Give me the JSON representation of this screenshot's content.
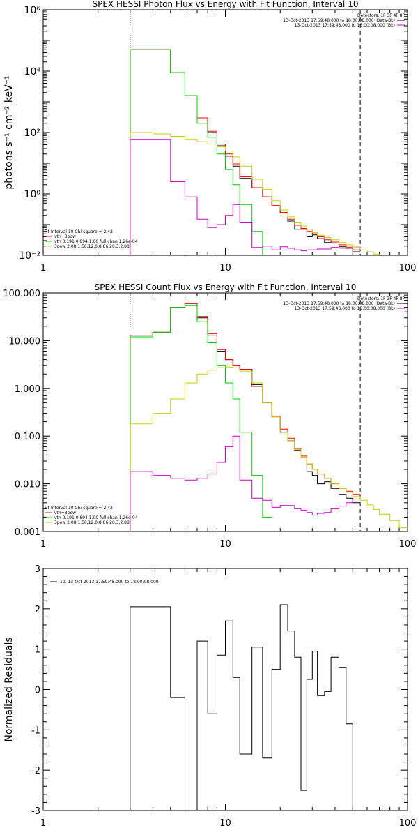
{
  "chart_data": [
    {
      "type": "line",
      "title": "SPEX HESSI Photon Flux vs Energy with Fit Function, Interval 10",
      "xlabel": "",
      "ylabel": "photons s⁻¹ cm⁻² keV⁻¹",
      "xscale": "log",
      "yscale": "log",
      "xlim": [
        1,
        100
      ],
      "ylim": [
        0.01,
        1000000
      ],
      "x_ticks": [
        {
          "value": 1,
          "label": "1"
        },
        {
          "value": 10,
          "label": "10"
        },
        {
          "value": 100,
          "label": "100"
        }
      ],
      "y_ticks": [
        {
          "value": 0.01,
          "label": "10⁻²"
        },
        {
          "value": 1,
          "label": "10⁰"
        },
        {
          "value": 100,
          "label": "10²"
        },
        {
          "value": 10000,
          "label": "10⁴"
        },
        {
          "value": 1000000,
          "label": "10⁶"
        }
      ],
      "fit_range": [
        3,
        55
      ],
      "legend_topright": {
        "header": "Detectors: 1F 3F 4F 8F",
        "entries": [
          {
            "label": "13-Oct-2013 17:59:48.000 to 18:00:08.000 (Data-Bk)",
            "color": "#000000"
          },
          {
            "label": "13-Oct-2013 17:59:48.000 to 18:00:08.000 (Bk)",
            "color": "#cc00cc"
          }
        ]
      },
      "legend_bottomleft": {
        "header": "Fit Interval 10   Chi-square = 2.42",
        "entries": [
          {
            "label": "vth+3pow",
            "color": "#ff0000"
          },
          {
            "label": "vth 0.191,0.894,1.00  full chan 1.26e-04",
            "color": "#00cc00"
          },
          {
            "label": "3pow 2.08,1.50,12.0,8.86,20.3,2.88",
            "color": "#cccc00"
          }
        ]
      },
      "series": [
        {
          "name": "Data-Bk",
          "color": "#000000",
          "edges": [
            3,
            4,
            5,
            6,
            7,
            8,
            9,
            10,
            11,
            12,
            14,
            16,
            18,
            20,
            22,
            24,
            26,
            28,
            30,
            32,
            35,
            38,
            42,
            46,
            50,
            55
          ],
          "values": [
            50000,
            50000,
            9000,
            1600,
            300,
            100,
            37,
            17,
            8,
            3.2,
            1.6,
            0.8,
            0.4,
            0.24,
            0.13,
            0.07,
            0.07,
            0.04,
            0.046,
            0.035,
            0.026,
            0.025,
            0.019,
            0.017,
            0.013
          ]
        },
        {
          "name": "vth+3pow",
          "color": "#ff0000",
          "edges": [
            3,
            4,
            5,
            6,
            7,
            8,
            9,
            10,
            11,
            12,
            14,
            16,
            18,
            20,
            22,
            24,
            26,
            28,
            30,
            32,
            35,
            38,
            42,
            46,
            50,
            55
          ],
          "values": [
            50000,
            50000,
            9000,
            1600,
            300,
            110,
            42,
            20,
            9.5,
            3.6,
            1.6,
            0.8,
            0.42,
            0.25,
            0.15,
            0.095,
            0.075,
            0.06,
            0.05,
            0.04,
            0.032,
            0.027,
            0.022,
            0.018,
            0.015
          ]
        },
        {
          "name": "vth",
          "color": "#00cc00",
          "edges": [
            3,
            4,
            5,
            6,
            7,
            8,
            9,
            10,
            11,
            12,
            14,
            16
          ],
          "values": [
            50000,
            50000,
            9000,
            1600,
            200,
            70,
            20,
            6.2,
            2,
            0.45,
            0.06,
            0.005
          ]
        },
        {
          "name": "3pow",
          "color": "#cccc00",
          "edges": [
            3,
            4,
            5,
            6,
            7,
            8,
            9,
            10,
            11,
            12,
            14,
            16,
            18,
            20,
            22,
            24,
            26,
            28,
            30,
            32,
            35,
            38,
            42,
            46,
            50,
            55,
            60,
            65,
            70,
            80
          ],
          "values": [
            100,
            90,
            75,
            60,
            50,
            42,
            34,
            25,
            16,
            8,
            3,
            1.4,
            0.6,
            0.3,
            0.18,
            0.12,
            0.09,
            0.07,
            0.055,
            0.045,
            0.038,
            0.032,
            0.026,
            0.022,
            0.018,
            0.015,
            0.013,
            0.011,
            0.01
          ]
        },
        {
          "name": "Bk",
          "color": "#cc00cc",
          "edges": [
            3,
            4,
            5,
            6,
            7,
            8,
            9,
            10,
            11,
            12,
            14,
            16,
            18,
            20,
            22,
            24,
            26,
            28,
            30,
            32,
            35,
            38,
            42,
            46,
            50,
            55
          ],
          "values": [
            60,
            60,
            2.5,
            0.8,
            0.15,
            0.08,
            0.1,
            0.2,
            0.45,
            0.12,
            0.018,
            0.02,
            0.015,
            0.019,
            0.017,
            0.015,
            0.014,
            0.015,
            0.015,
            0.016,
            0.016,
            0.018,
            0.017,
            0.02,
            0.02
          ]
        }
      ]
    },
    {
      "type": "line",
      "title": "SPEX HESSI Count Flux vs Energy with Fit Function, Interval 10",
      "xlabel": "",
      "ylabel": "",
      "xscale": "log",
      "yscale": "log",
      "xlim": [
        1,
        100
      ],
      "ylim": [
        0.001,
        100
      ],
      "x_ticks": [
        {
          "value": 1,
          "label": "1"
        },
        {
          "value": 10,
          "label": "10"
        },
        {
          "value": 100,
          "label": "100"
        }
      ],
      "y_ticks": [
        {
          "value": 0.001,
          "label": "0.001"
        },
        {
          "value": 0.01,
          "label": "0.010"
        },
        {
          "value": 0.1,
          "label": "0.100"
        },
        {
          "value": 1,
          "label": "1.000"
        },
        {
          "value": 10,
          "label": "10.000"
        },
        {
          "value": 100,
          "label": "100.000"
        }
      ],
      "fit_range": [
        3,
        55
      ],
      "legend_topright": {
        "header": "Detectors: 1F 3F 4F 8F",
        "entries": [
          {
            "label": "13-Oct-2013 17:59:48.000 to 18:00:08.000 (Data-Bk)",
            "color": "#000000"
          },
          {
            "label": "13-Oct-2013 17:59:48.000 to 18:00:08.000 (Bk)",
            "color": "#cc00cc"
          }
        ]
      },
      "legend_bottomleft": {
        "header": "Fit Interval 10   Chi-square = 2.42",
        "entries": [
          {
            "label": "vth+3pow",
            "color": "#ff0000"
          },
          {
            "label": "vth 0.191,0.894,1.00  full chan 1.26e-04",
            "color": "#00cc00"
          },
          {
            "label": "3pow 2.08,1.50,12.0,8.86,20.3,2.88",
            "color": "#cccc00"
          }
        ]
      },
      "series": [
        {
          "name": "Data-Bk",
          "color": "#000000",
          "edges": [
            3,
            4,
            5,
            6,
            7,
            8,
            9,
            10,
            11,
            12,
            14,
            16,
            18,
            20,
            22,
            24,
            26,
            28,
            30,
            32,
            35,
            38,
            42,
            46,
            50,
            55
          ],
          "values": [
            13,
            15,
            50,
            60,
            30,
            13,
            6,
            4,
            3,
            2.5,
            1.2,
            0.5,
            0.25,
            0.12,
            0.08,
            0.05,
            0.035,
            0.018,
            0.015,
            0.01,
            0.011,
            0.008,
            0.006,
            0.005,
            0.004
          ]
        },
        {
          "name": "vth+3pow",
          "color": "#ff0000",
          "edges": [
            3,
            4,
            5,
            6,
            7,
            8,
            9,
            10,
            11,
            12,
            14,
            16,
            18,
            20,
            22,
            24,
            26,
            28,
            30,
            32,
            35,
            38,
            42,
            46,
            50,
            55
          ],
          "values": [
            13,
            15,
            50,
            60,
            32,
            14,
            6.5,
            4,
            3,
            2.5,
            1.1,
            0.5,
            0.26,
            0.14,
            0.09,
            0.055,
            0.038,
            0.026,
            0.02,
            0.016,
            0.013,
            0.01,
            0.008,
            0.007,
            0.006
          ]
        },
        {
          "name": "vth",
          "color": "#00cc00",
          "edges": [
            3,
            4,
            5,
            6,
            7,
            8,
            9,
            10,
            11,
            12,
            14,
            16,
            18
          ],
          "values": [
            12,
            15,
            50,
            55,
            25,
            9,
            3,
            1.3,
            0.6,
            0.12,
            0.015,
            0.002
          ]
        },
        {
          "name": "3pow",
          "color": "#cccc00",
          "edges": [
            3,
            4,
            5,
            6,
            7,
            8,
            9,
            10,
            11,
            12,
            14,
            16,
            18,
            20,
            22,
            24,
            26,
            28,
            30,
            32,
            35,
            38,
            42,
            46,
            50,
            55,
            60,
            65,
            70,
            80,
            90,
            100
          ],
          "values": [
            0.18,
            0.3,
            0.6,
            1.3,
            2,
            2.4,
            2.7,
            2.8,
            2.7,
            2.3,
            1.3,
            0.5,
            0.25,
            0.12,
            0.08,
            0.052,
            0.036,
            0.026,
            0.02,
            0.016,
            0.013,
            0.01,
            0.008,
            0.0066,
            0.0054,
            0.0045,
            0.0036,
            0.0029,
            0.0023,
            0.0017,
            0.0012
          ]
        },
        {
          "name": "Bk",
          "color": "#cc00cc",
          "edges": [
            3,
            4,
            5,
            6,
            7,
            8,
            9,
            10,
            11,
            12,
            14,
            16,
            18,
            20,
            22,
            24,
            26,
            28,
            30,
            32,
            35,
            38,
            42,
            46,
            50,
            55
          ],
          "values": [
            0.018,
            0.015,
            0.013,
            0.012,
            0.013,
            0.016,
            0.028,
            0.06,
            0.1,
            0.012,
            0.005,
            0.0045,
            0.0032,
            0.0035,
            0.0035,
            0.003,
            0.0028,
            0.0025,
            0.0022,
            0.0024,
            0.0025,
            0.003,
            0.0034,
            0.004,
            0.0048
          ]
        }
      ]
    },
    {
      "type": "line",
      "title": "",
      "xlabel": "",
      "ylabel": "Normalized Residuals",
      "xscale": "log",
      "yscale": "linear",
      "xlim": [
        1,
        100
      ],
      "ylim": [
        -3,
        3
      ],
      "x_ticks": [
        {
          "value": 1,
          "label": "1"
        },
        {
          "value": 10,
          "label": "10"
        },
        {
          "value": 100,
          "label": "100"
        }
      ],
      "y_ticks": [
        {
          "value": -3,
          "label": "-3"
        },
        {
          "value": -2,
          "label": "-2"
        },
        {
          "value": -1,
          "label": "-1"
        },
        {
          "value": 0,
          "label": "0"
        },
        {
          "value": 1,
          "label": "1"
        },
        {
          "value": 2,
          "label": "2"
        },
        {
          "value": 3,
          "label": "3"
        }
      ],
      "legend_topleft": {
        "entries": [
          {
            "label": "10. 13-Oct-2013 17:59:48.000 to 18:00:08.000",
            "color": "#000000"
          }
        ]
      },
      "series": [
        {
          "name": "10. 13-Oct-2013 17:59:48.000 to 18:00:08.000",
          "color": "#000000",
          "edges": [
            3,
            4,
            5,
            6,
            7,
            8,
            9,
            10,
            11,
            12,
            14,
            16,
            18,
            20,
            22,
            24,
            26,
            28,
            30,
            32,
            35,
            38,
            42,
            46,
            50,
            55
          ],
          "values": [
            2.05,
            2.05,
            -0.2,
            -3.1,
            1.2,
            -0.6,
            0.85,
            1.7,
            0.3,
            -1.6,
            1.05,
            -1.7,
            0.5,
            2.1,
            1.45,
            0.8,
            -2.5,
            0.25,
            0.95,
            -0.15,
            -0.05,
            0.8,
            0.55,
            -0.85,
            -3.2
          ]
        }
      ]
    }
  ]
}
